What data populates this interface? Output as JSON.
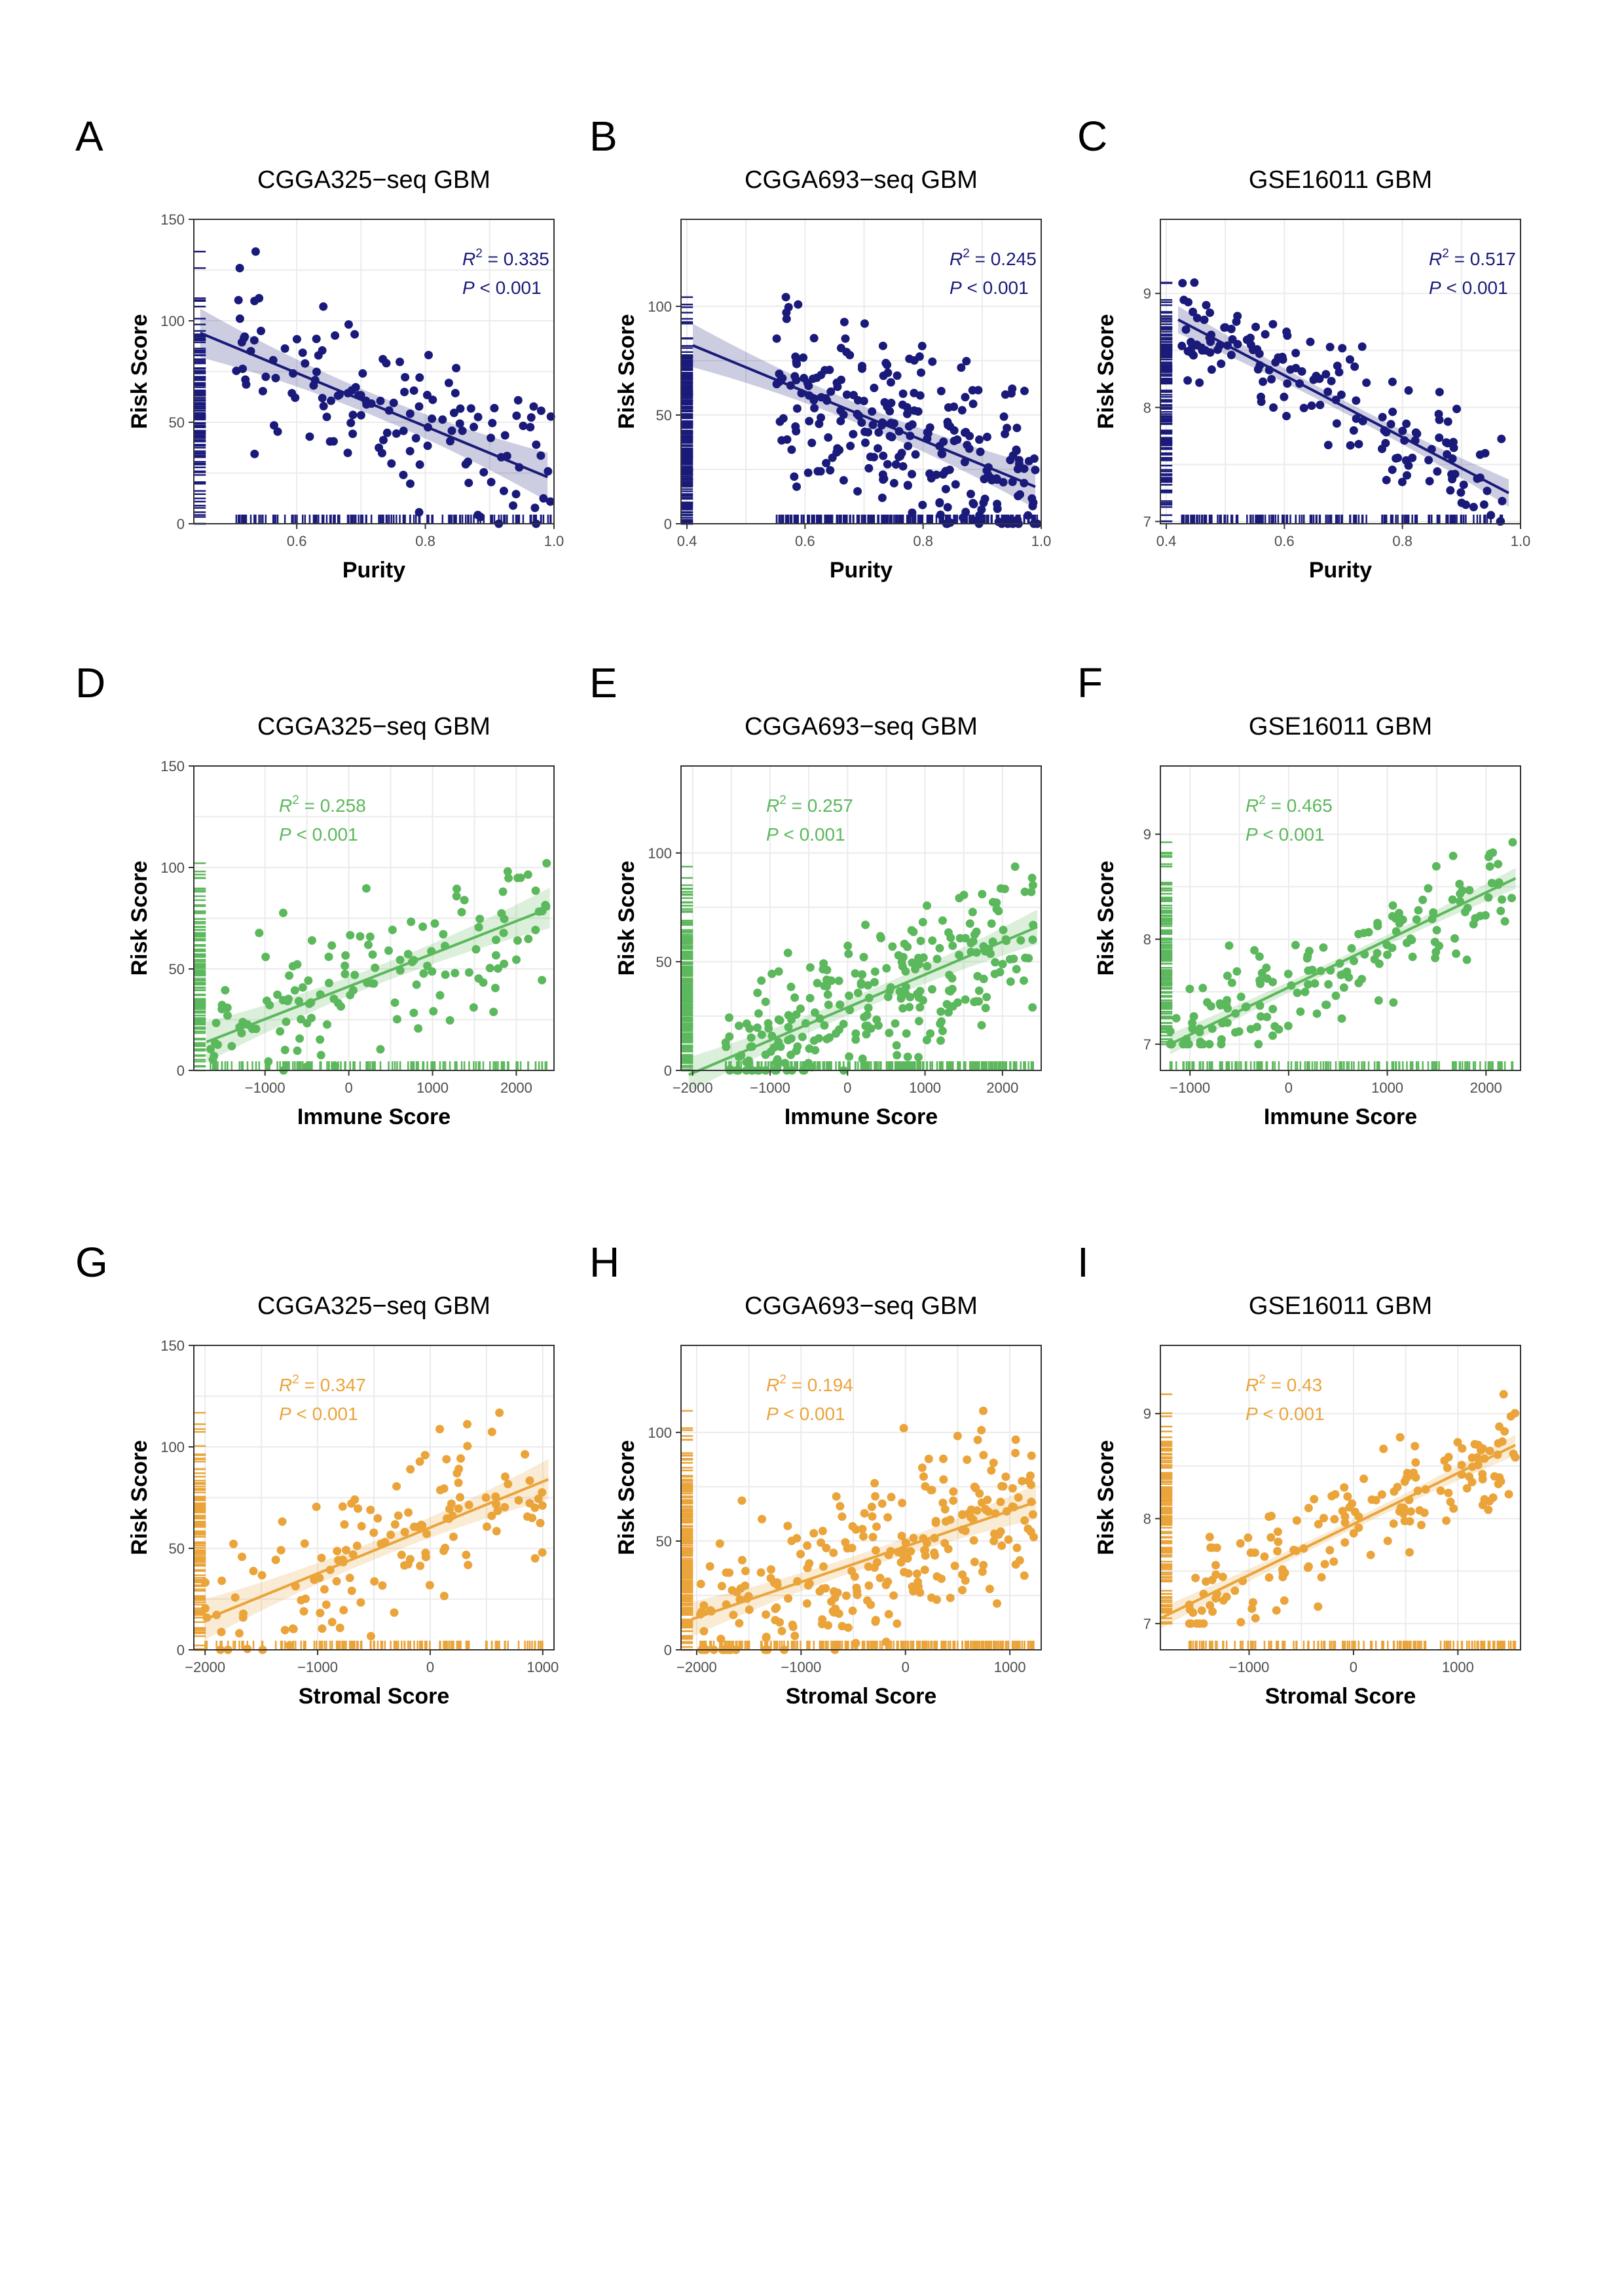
{
  "figure": {
    "colors": {
      "purity": "#1a1a7a",
      "immune": "#5cb85c",
      "stromal": "#eaa43a"
    },
    "panels": [
      {
        "letter": "A",
        "title": "CGGA325−seq GBM",
        "r2": "0.335",
        "p": "0.001",
        "color": "#1a1a7a",
        "xlabel": "Purity",
        "ylabel": "Risk Score",
        "xlim": [
          0.44,
          1.0
        ],
        "ylim": [
          0,
          150
        ],
        "xticks": [
          0.6,
          0.8,
          1.0
        ],
        "xtick_labels": [
          "0.6",
          "0.8",
          "1.0"
        ],
        "yticks": [
          0,
          50,
          100,
          150
        ],
        "ytick_labels": [
          "0",
          "50",
          "100",
          "150"
        ],
        "fit": [
          [
            0.45,
            94
          ],
          [
            0.99,
            23
          ]
        ],
        "band": 12,
        "n": 140,
        "seed": 11,
        "xrange": [
          0.5,
          1.0
        ],
        "yrange": [
          0,
          150
        ],
        "noise": 18
      },
      {
        "letter": "B",
        "title": "CGGA693−seq GBM",
        "r2": "0.245",
        "p": "0.001",
        "color": "#1a1a7a",
        "xlabel": "Purity",
        "ylabel": "Risk Score",
        "xlim": [
          0.39,
          1.0
        ],
        "ylim": [
          0,
          140
        ],
        "xticks": [
          0.4,
          0.6,
          0.8,
          1.0
        ],
        "xtick_labels": [
          "0.4",
          "0.6",
          "0.8",
          "1.0"
        ],
        "yticks": [
          0,
          50,
          100
        ],
        "ytick_labels": [
          "0",
          "50",
          "100"
        ],
        "fit": [
          [
            0.41,
            82
          ],
          [
            0.99,
            17
          ]
        ],
        "band": 10,
        "n": 260,
        "seed": 23,
        "xrange": [
          0.55,
          1.0
        ],
        "yrange": [
          0,
          135
        ],
        "noise": 20
      },
      {
        "letter": "C",
        "title": "GSE16011  GBM",
        "r2": "0.517",
        "p": "0.001",
        "color": "#1a1a7a",
        "xlabel": "Purity",
        "ylabel": "Risk Score",
        "xlim": [
          0.39,
          1.0
        ],
        "ylim": [
          6.98,
          9.65
        ],
        "xticks": [
          0.4,
          0.6,
          0.8,
          1.0
        ],
        "xtick_labels": [
          "0.4",
          "0.6",
          "0.8",
          "1.0"
        ],
        "yticks": [
          7,
          8,
          9
        ],
        "ytick_labels": [
          "7",
          "8",
          "9"
        ],
        "fit": [
          [
            0.42,
            8.77
          ],
          [
            0.98,
            7.25
          ]
        ],
        "band": 0.12,
        "n": 160,
        "seed": 37,
        "xrange": [
          0.42,
          0.98
        ],
        "yrange": [
          7.0,
          9.6
        ],
        "noise": 0.22
      },
      {
        "letter": "D",
        "title": "CGGA325−seq GBM",
        "r2": "0.258",
        "p": "0.001",
        "color": "#5cb85c",
        "xlabel": "Immune Score",
        "ylabel": "Risk Score",
        "xlim": [
          -1850,
          2450
        ],
        "ylim": [
          0,
          150
        ],
        "xticks": [
          -1000,
          0,
          1000,
          2000
        ],
        "xtick_labels": [
          "−1000",
          "0",
          "1000",
          "2000"
        ],
        "yticks": [
          0,
          50,
          100,
          150
        ],
        "ytick_labels": [
          "0",
          "50",
          "100",
          "150"
        ],
        "fit": [
          [
            -1700,
            14
          ],
          [
            2400,
            80
          ]
        ],
        "band": 10,
        "n": 140,
        "seed": 41,
        "xrange": [
          -1700,
          2400
        ],
        "yrange": [
          0,
          150
        ],
        "noise": 18
      },
      {
        "letter": "E",
        "title": "CGGA693−seq GBM",
        "r2": "0.257",
        "p": "0.001",
        "color": "#5cb85c",
        "xlabel": "Immune Score",
        "ylabel": "Risk Score",
        "xlim": [
          -2150,
          2500
        ],
        "ylim": [
          0,
          140
        ],
        "xticks": [
          -2000,
          -1000,
          0,
          1000,
          2000
        ],
        "xtick_labels": [
          "−2000",
          "−1000",
          "0",
          "1000",
          "2000"
        ],
        "yticks": [
          0,
          50,
          100
        ],
        "ytick_labels": [
          "0",
          "50",
          "100"
        ],
        "fit": [
          [
            -2050,
            -2
          ],
          [
            2450,
            66
          ]
        ],
        "band": 8,
        "n": 260,
        "seed": 53,
        "xrange": [
          -1600,
          2400
        ],
        "yrange": [
          0,
          135
        ],
        "noise": 17
      },
      {
        "letter": "F",
        "title": "GSE16011  GBM",
        "r2": "0.465",
        "p": "0.001",
        "color": "#5cb85c",
        "xlabel": "Immune Score",
        "ylabel": "Risk Score",
        "xlim": [
          -1300,
          2350
        ],
        "ylim": [
          6.75,
          9.65
        ],
        "xticks": [
          -1000,
          0,
          1000,
          2000
        ],
        "xtick_labels": [
          "−1000",
          "0",
          "1000",
          "2000"
        ],
        "yticks": [
          7,
          8,
          9
        ],
        "ytick_labels": [
          "7",
          "8",
          "9"
        ],
        "fit": [
          [
            -1200,
            7.0
          ],
          [
            2300,
            8.58
          ]
        ],
        "band": 0.1,
        "n": 160,
        "seed": 67,
        "xrange": [
          -1200,
          2300
        ],
        "yrange": [
          7.0,
          9.6
        ],
        "noise": 0.25
      },
      {
        "letter": "G",
        "title": "CGGA325−seq GBM",
        "r2": "0.347",
        "p": "0.001",
        "color": "#eaa43a",
        "xlabel": "Stromal Score",
        "ylabel": "Risk Score",
        "xlim": [
          -2100,
          1100
        ],
        "ylim": [
          0,
          150
        ],
        "xticks": [
          -2000,
          -1000,
          0,
          1000
        ],
        "xtick_labels": [
          "−2000",
          "−1000",
          "0",
          "1000"
        ],
        "yticks": [
          0,
          50,
          100,
          150
        ],
        "ytick_labels": [
          "0",
          "50",
          "100",
          "150"
        ],
        "fit": [
          [
            -2000,
            15
          ],
          [
            1050,
            84
          ]
        ],
        "band": 10,
        "n": 140,
        "seed": 71,
        "xrange": [
          -2000,
          1050
        ],
        "yrange": [
          0,
          150
        ],
        "noise": 18
      },
      {
        "letter": "H",
        "title": "CGGA693−seq GBM",
        "r2": "0.194",
        "p": "0.001",
        "color": "#eaa43a",
        "xlabel": "Stromal Score",
        "ylabel": "Risk Score",
        "xlim": [
          -2150,
          1300
        ],
        "ylim": [
          0,
          140
        ],
        "xticks": [
          -2000,
          -1000,
          0,
          1000
        ],
        "xtick_labels": [
          "−2000",
          "−1000",
          "0",
          "1000"
        ],
        "yticks": [
          0,
          50,
          100
        ],
        "ytick_labels": [
          "0",
          "50",
          "100"
        ],
        "fit": [
          [
            -2050,
            14
          ],
          [
            1250,
            68
          ]
        ],
        "band": 8,
        "n": 260,
        "seed": 83,
        "xrange": [
          -2000,
          1250
        ],
        "yrange": [
          0,
          135
        ],
        "noise": 20
      },
      {
        "letter": "I",
        "title": "GSE16011  GBM",
        "r2": "0.43",
        "p": "0.001",
        "color": "#eaa43a",
        "xlabel": "Stromal Score",
        "ylabel": "Risk Score",
        "xlim": [
          -1850,
          1600
        ],
        "ylim": [
          6.75,
          9.65
        ],
        "xticks": [
          -1000,
          0,
          1000
        ],
        "xtick_labels": [
          "−1000",
          "0",
          "1000"
        ],
        "yticks": [
          7,
          8,
          9
        ],
        "ytick_labels": [
          "7",
          "8",
          "9"
        ],
        "fit": [
          [
            -1850,
            7.05
          ],
          [
            1550,
            8.7
          ]
        ],
        "band": 0.1,
        "n": 160,
        "seed": 97,
        "xrange": [
          -1600,
          1550
        ],
        "yrange": [
          7.0,
          9.6
        ],
        "noise": 0.25
      }
    ]
  },
  "chart_data": [
    {
      "type": "scatter",
      "title": "CGGA325−seq GBM",
      "xlabel": "Purity",
      "ylabel": "Risk Score",
      "xlim": [
        0.44,
        1.0
      ],
      "ylim": [
        0,
        150
      ],
      "regression": {
        "r2": 0.335,
        "p": "<0.001",
        "line": [
          [
            0.45,
            94
          ],
          [
            0.99,
            23
          ]
        ]
      }
    },
    {
      "type": "scatter",
      "title": "CGGA693−seq GBM",
      "xlabel": "Purity",
      "ylabel": "Risk Score",
      "xlim": [
        0.39,
        1.0
      ],
      "ylim": [
        0,
        140
      ],
      "regression": {
        "r2": 0.245,
        "p": "<0.001",
        "line": [
          [
            0.41,
            82
          ],
          [
            0.99,
            17
          ]
        ]
      }
    },
    {
      "type": "scatter",
      "title": "GSE16011  GBM",
      "xlabel": "Purity",
      "ylabel": "Risk Score",
      "xlim": [
        0.39,
        1.0
      ],
      "ylim": [
        6.98,
        9.65
      ],
      "regression": {
        "r2": 0.517,
        "p": "<0.001",
        "line": [
          [
            0.42,
            8.77
          ],
          [
            0.98,
            7.25
          ]
        ]
      }
    },
    {
      "type": "scatter",
      "title": "CGGA325−seq GBM",
      "xlabel": "Immune Score",
      "ylabel": "Risk Score",
      "xlim": [
        -1850,
        2450
      ],
      "ylim": [
        0,
        150
      ],
      "regression": {
        "r2": 0.258,
        "p": "<0.001",
        "line": [
          [
            -1700,
            14
          ],
          [
            2400,
            80
          ]
        ]
      }
    },
    {
      "type": "scatter",
      "title": "CGGA693−seq GBM",
      "xlabel": "Immune Score",
      "ylabel": "Risk Score",
      "xlim": [
        -2150,
        2500
      ],
      "ylim": [
        0,
        140
      ],
      "regression": {
        "r2": 0.257,
        "p": "<0.001",
        "line": [
          [
            -2050,
            -2
          ],
          [
            2450,
            66
          ]
        ]
      }
    },
    {
      "type": "scatter",
      "title": "GSE16011  GBM",
      "xlabel": "Immune Score",
      "ylabel": "Risk Score",
      "xlim": [
        -1300,
        2350
      ],
      "ylim": [
        6.75,
        9.65
      ],
      "regression": {
        "r2": 0.465,
        "p": "<0.001",
        "line": [
          [
            -1200,
            7.0
          ],
          [
            2300,
            8.58
          ]
        ]
      }
    },
    {
      "type": "scatter",
      "title": "CGGA325−seq GBM",
      "xlabel": "Stromal Score",
      "ylabel": "Risk Score",
      "xlim": [
        -2100,
        1100
      ],
      "ylim": [
        0,
        150
      ],
      "regression": {
        "r2": 0.347,
        "p": "<0.001",
        "line": [
          [
            -2000,
            15
          ],
          [
            1050,
            84
          ]
        ]
      }
    },
    {
      "type": "scatter",
      "title": "CGGA693−seq GBM",
      "xlabel": "Stromal Score",
      "ylabel": "Risk Score",
      "xlim": [
        -2150,
        1300
      ],
      "ylim": [
        0,
        140
      ],
      "regression": {
        "r2": 0.194,
        "p": "<0.001",
        "line": [
          [
            -2050,
            14
          ],
          [
            1250,
            68
          ]
        ]
      }
    },
    {
      "type": "scatter",
      "title": "GSE16011  GBM",
      "xlabel": "Stromal Score",
      "ylabel": "Risk Score",
      "xlim": [
        -1850,
        1600
      ],
      "ylim": [
        6.75,
        9.65
      ],
      "regression": {
        "r2": 0.43,
        "p": "<0.001",
        "line": [
          [
            -1850,
            7.05
          ],
          [
            1550,
            8.7
          ]
        ]
      }
    }
  ]
}
